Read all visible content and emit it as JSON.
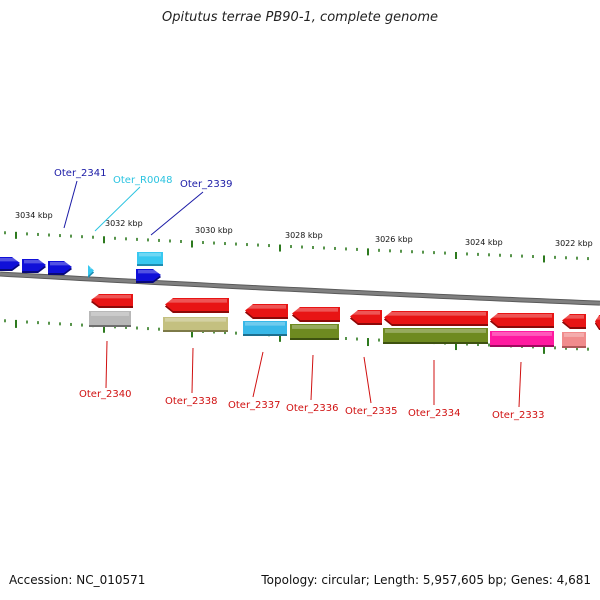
{
  "title": "Opitutus terrae PB90-1, complete genome",
  "footer": {
    "accession": "Accession: NC_010571",
    "summary": "Topology: circular; Length: 5,957,605 bp; Genes: 4,681"
  },
  "colors": {
    "backbone": "#808080",
    "tick": "#2d7a1e",
    "label_top_dark": "#1a1aa6",
    "label_top_cyan": "#2ac3e0",
    "label_bottom": "#d01010"
  },
  "scale_labels": [
    "3034 kbp",
    "3032 kbp",
    "3030 kbp",
    "3028 kbp",
    "3026 kbp",
    "3024 kbp",
    "3022 kbp"
  ],
  "gene_labels_top": [
    {
      "text": "Oter_2341",
      "color": "#1a1aa6"
    },
    {
      "text": "Oter_R0048",
      "color": "#2ac3e0"
    },
    {
      "text": "Oter_2339",
      "color": "#1a1aa6"
    }
  ],
  "gene_labels_bottom": [
    "Oter_2340",
    "Oter_2338",
    "Oter_2337",
    "Oter_2336",
    "Oter_2335",
    "Oter_2334",
    "Oter_2333"
  ],
  "genes": [
    {
      "name": "gene-forward-1",
      "color": "#1010d8",
      "shadow": "#08087a"
    },
    {
      "name": "gene-forward-2",
      "color": "#1010d8",
      "shadow": "#08087a"
    },
    {
      "name": "gene-forward-3",
      "color": "#1010d8",
      "shadow": "#08087a"
    },
    {
      "name": "gene-trna-R0048",
      "color": "#38c8f0",
      "shadow": "#1e8cb0"
    },
    {
      "name": "gene-forward-4",
      "color": "#38c8f0",
      "shadow": "#1e8cb0"
    },
    {
      "name": "gene-forward-5",
      "color": "#1010d8",
      "shadow": "#08087a"
    },
    {
      "name": "gene-reverse-2340",
      "color": "#e81414",
      "shadow": "#8c0808"
    },
    {
      "name": "gene-feature-2340",
      "color": "#b8b8b8",
      "shadow": "#6e6e6e"
    },
    {
      "name": "gene-reverse-2338",
      "color": "#e81414",
      "shadow": "#8c0808"
    },
    {
      "name": "gene-feature-2338",
      "color": "#c4c080",
      "shadow": "#7d7a48"
    },
    {
      "name": "gene-reverse-2337",
      "color": "#e81414",
      "shadow": "#8c0808"
    },
    {
      "name": "gene-feature-2337",
      "color": "#38b8e8",
      "shadow": "#1c6f90"
    },
    {
      "name": "gene-reverse-2336",
      "color": "#e81414",
      "shadow": "#8c0808"
    },
    {
      "name": "gene-feature-2336",
      "color": "#6e8a20",
      "shadow": "#3e5210"
    },
    {
      "name": "gene-reverse-2335",
      "color": "#e81414",
      "shadow": "#8c0808"
    },
    {
      "name": "gene-reverse-2334",
      "color": "#e81414",
      "shadow": "#8c0808"
    },
    {
      "name": "gene-feature-2334",
      "color": "#6e8a20",
      "shadow": "#3e5210"
    },
    {
      "name": "gene-reverse-2333",
      "color": "#e81414",
      "shadow": "#8c0808"
    },
    {
      "name": "gene-feature-2333",
      "color": "#ff1aa0",
      "shadow": "#a0085e"
    },
    {
      "name": "gene-reverse-edge",
      "color": "#e81414",
      "shadow": "#8c0808"
    },
    {
      "name": "gene-feature-edge",
      "color": "#f08c8c",
      "shadow": "#b05858"
    },
    {
      "name": "gene-reverse-edge-2",
      "color": "#e81414",
      "shadow": "#8c0808"
    }
  ]
}
